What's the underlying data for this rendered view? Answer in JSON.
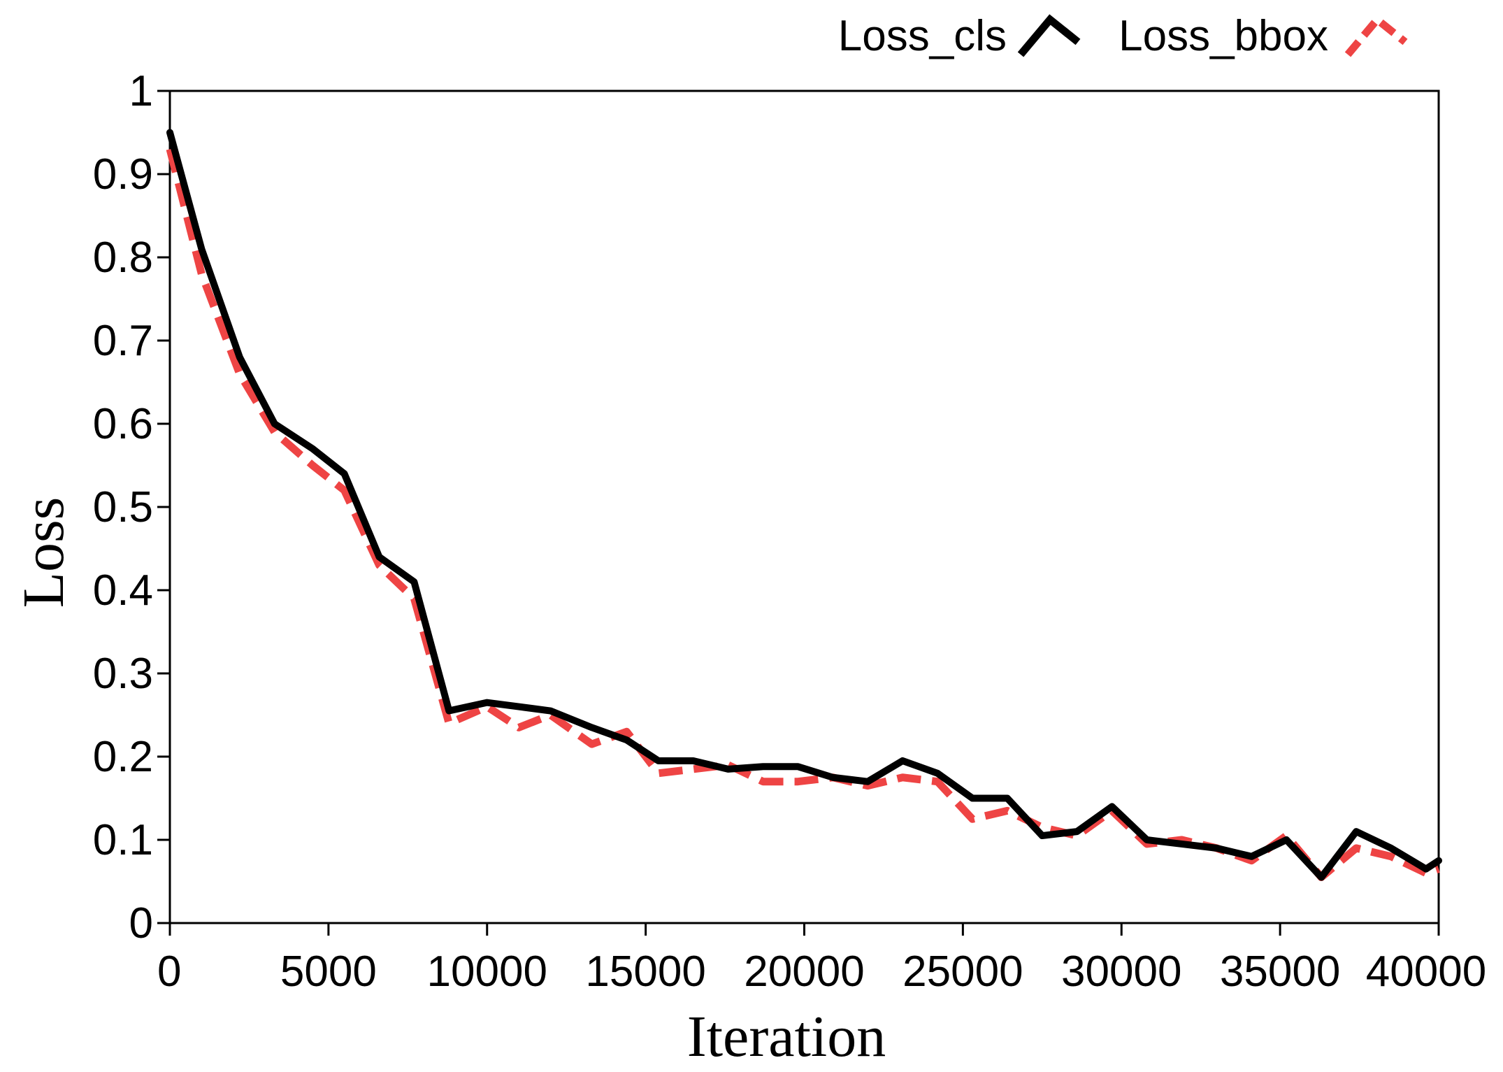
{
  "chart_data": {
    "type": "line",
    "xlabel": "Iteration",
    "ylabel": "Loss",
    "xlim": [
      0,
      40000
    ],
    "ylim": [
      0,
      1
    ],
    "xticks": [
      0,
      5000,
      10000,
      15000,
      20000,
      25000,
      30000,
      35000,
      40000
    ],
    "yticks": [
      0,
      0.1,
      0.2,
      0.3,
      0.4,
      0.5,
      0.6,
      0.7,
      0.8,
      0.9,
      1
    ],
    "ytick_labels": [
      "0",
      "0.1",
      "0.2",
      "0.3",
      "0.4",
      "0.5",
      "0.6",
      "0.7",
      "0.8",
      "0.9",
      "1"
    ],
    "grid": false,
    "legend_position": "top-right",
    "series": [
      {
        "name": "Loss_cls",
        "color": "#000000",
        "style": "solid",
        "x": [
          0,
          1000,
          2200,
          3300,
          4500,
          5500,
          6600,
          7700,
          8800,
          10000,
          11000,
          12000,
          13300,
          14400,
          15400,
          16500,
          17600,
          18700,
          19800,
          20900,
          22000,
          23100,
          24200,
          25300,
          26400,
          27500,
          28600,
          29700,
          30800,
          31900,
          33000,
          34100,
          35200,
          36300,
          37400,
          38500,
          39600,
          40000
        ],
        "y": [
          0.95,
          0.81,
          0.68,
          0.6,
          0.57,
          0.54,
          0.44,
          0.41,
          0.255,
          0.265,
          0.26,
          0.255,
          0.235,
          0.22,
          0.195,
          0.195,
          0.185,
          0.188,
          0.188,
          0.175,
          0.17,
          0.195,
          0.18,
          0.15,
          0.15,
          0.105,
          0.11,
          0.14,
          0.1,
          0.095,
          0.09,
          0.08,
          0.1,
          0.055,
          0.11,
          0.09,
          0.065,
          0.075
        ]
      },
      {
        "name": "Loss_bbox",
        "color": "#ee4444",
        "style": "dashed",
        "x": [
          0,
          1000,
          2200,
          3300,
          4500,
          5500,
          6600,
          7700,
          8800,
          10000,
          11000,
          12000,
          13300,
          14400,
          15400,
          16500,
          17600,
          18700,
          19800,
          20900,
          22000,
          23100,
          24200,
          25300,
          26400,
          27500,
          28600,
          29700,
          30800,
          31900,
          33000,
          34100,
          35200,
          36300,
          37400,
          38500,
          39600,
          40000
        ],
        "y": [
          0.93,
          0.78,
          0.66,
          0.59,
          0.55,
          0.52,
          0.43,
          0.39,
          0.24,
          0.26,
          0.235,
          0.25,
          0.215,
          0.23,
          0.18,
          0.185,
          0.19,
          0.17,
          0.17,
          0.175,
          0.165,
          0.175,
          0.17,
          0.125,
          0.135,
          0.115,
          0.105,
          0.135,
          0.095,
          0.1,
          0.09,
          0.075,
          0.105,
          0.055,
          0.09,
          0.08,
          0.06,
          0.065
        ]
      }
    ]
  }
}
